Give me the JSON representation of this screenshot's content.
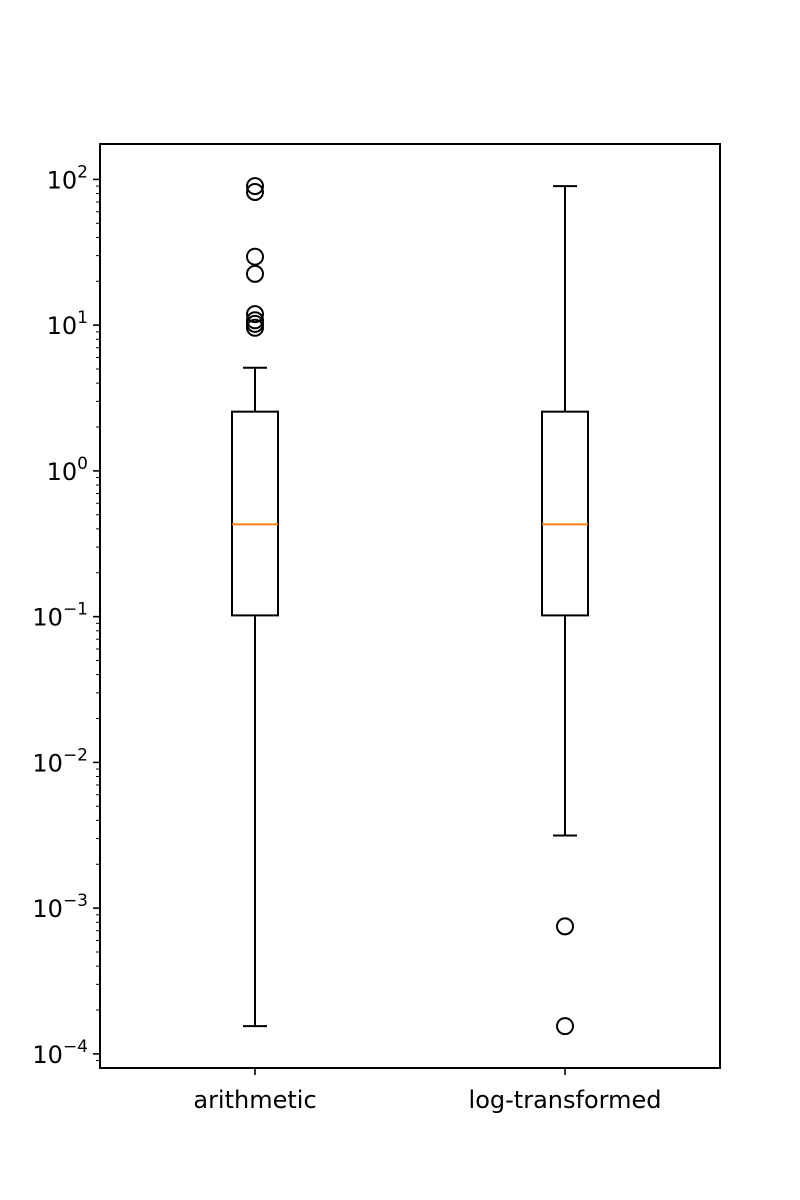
{
  "chart_data": {
    "type": "box",
    "yscale": "log",
    "ylim": [
      8e-05,
      175
    ],
    "yticks": [
      {
        "value": 0.0001,
        "base": "10",
        "exp": "−4"
      },
      {
        "value": 0.001,
        "base": "10",
        "exp": "−3"
      },
      {
        "value": 0.01,
        "base": "10",
        "exp": "−2"
      },
      {
        "value": 0.1,
        "base": "10",
        "exp": "−1"
      },
      {
        "value": 1,
        "base": "10",
        "exp": "0"
      },
      {
        "value": 10,
        "base": "10",
        "exp": "1"
      },
      {
        "value": 100,
        "base": "10",
        "exp": "2"
      }
    ],
    "categories": [
      "arithmetic",
      "log-transformed"
    ],
    "boxes": [
      {
        "category": "arithmetic",
        "whisker_low": 0.000155,
        "q1": 0.102,
        "median": 0.43,
        "q3": 2.55,
        "whisker_high": 5.1,
        "outliers": [
          9.6,
          10.2,
          10.8,
          11.9,
          22.5,
          29.5,
          82.0,
          90.0
        ]
      },
      {
        "category": "log-transformed",
        "whisker_low": 0.00315,
        "q1": 0.102,
        "median": 0.43,
        "q3": 2.55,
        "whisker_high": 90.0,
        "outliers": [
          0.000155,
          0.00075
        ]
      }
    ],
    "colors": {
      "box": "#000000",
      "median": "#ff7f0e",
      "outlier": "#000000"
    },
    "grid": false,
    "legend": "none"
  }
}
